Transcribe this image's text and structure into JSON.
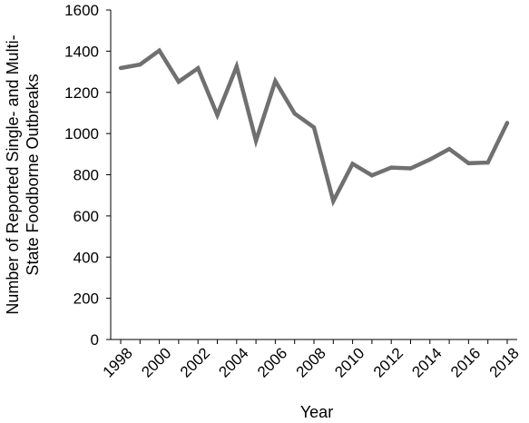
{
  "chart_data": {
    "type": "line",
    "title": "",
    "xlabel": "Year",
    "ylabel_lines": [
      "Number of Reported Single- and Multi-",
      "State Foodborne Outbreaks"
    ],
    "ylim": [
      0,
      1600
    ],
    "yticks": [
      0,
      200,
      400,
      600,
      800,
      1000,
      1200,
      1400,
      1600
    ],
    "xlim": [
      1998,
      2018
    ],
    "xticks": [
      1998,
      2000,
      2002,
      2004,
      2006,
      2008,
      2010,
      2012,
      2014,
      2016,
      2018
    ],
    "grid": false,
    "legend": false,
    "series": [
      {
        "color": "#707070",
        "x": [
          1998,
          1999,
          2000,
          2001,
          2002,
          2003,
          2004,
          2005,
          2006,
          2007,
          2008,
          2009,
          2010,
          2011,
          2012,
          2013,
          2014,
          2015,
          2016,
          2017,
          2018
        ],
        "values": [
          1318,
          1335,
          1403,
          1252,
          1317,
          1090,
          1326,
          965,
          1255,
          1097,
          1030,
          672,
          853,
          797,
          835,
          831,
          874,
          925,
          856,
          859,
          1052
        ]
      }
    ]
  }
}
